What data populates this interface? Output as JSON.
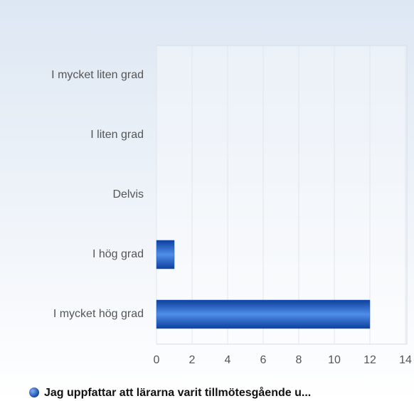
{
  "chart_data": {
    "type": "bar",
    "orientation": "horizontal",
    "categories": [
      "I mycket liten grad",
      "I liten grad",
      "Delvis",
      "I hög grad",
      "I mycket hög grad"
    ],
    "series": [
      {
        "name": "Jag uppfattar att lärarna varit tillmötesgående u...",
        "color": "#1f5fc4",
        "values": [
          0,
          0,
          0,
          1,
          12
        ]
      }
    ],
    "xlim": [
      0,
      14
    ],
    "xticks": [
      0,
      2,
      4,
      6,
      8,
      10,
      12,
      14
    ],
    "grid": true
  }
}
